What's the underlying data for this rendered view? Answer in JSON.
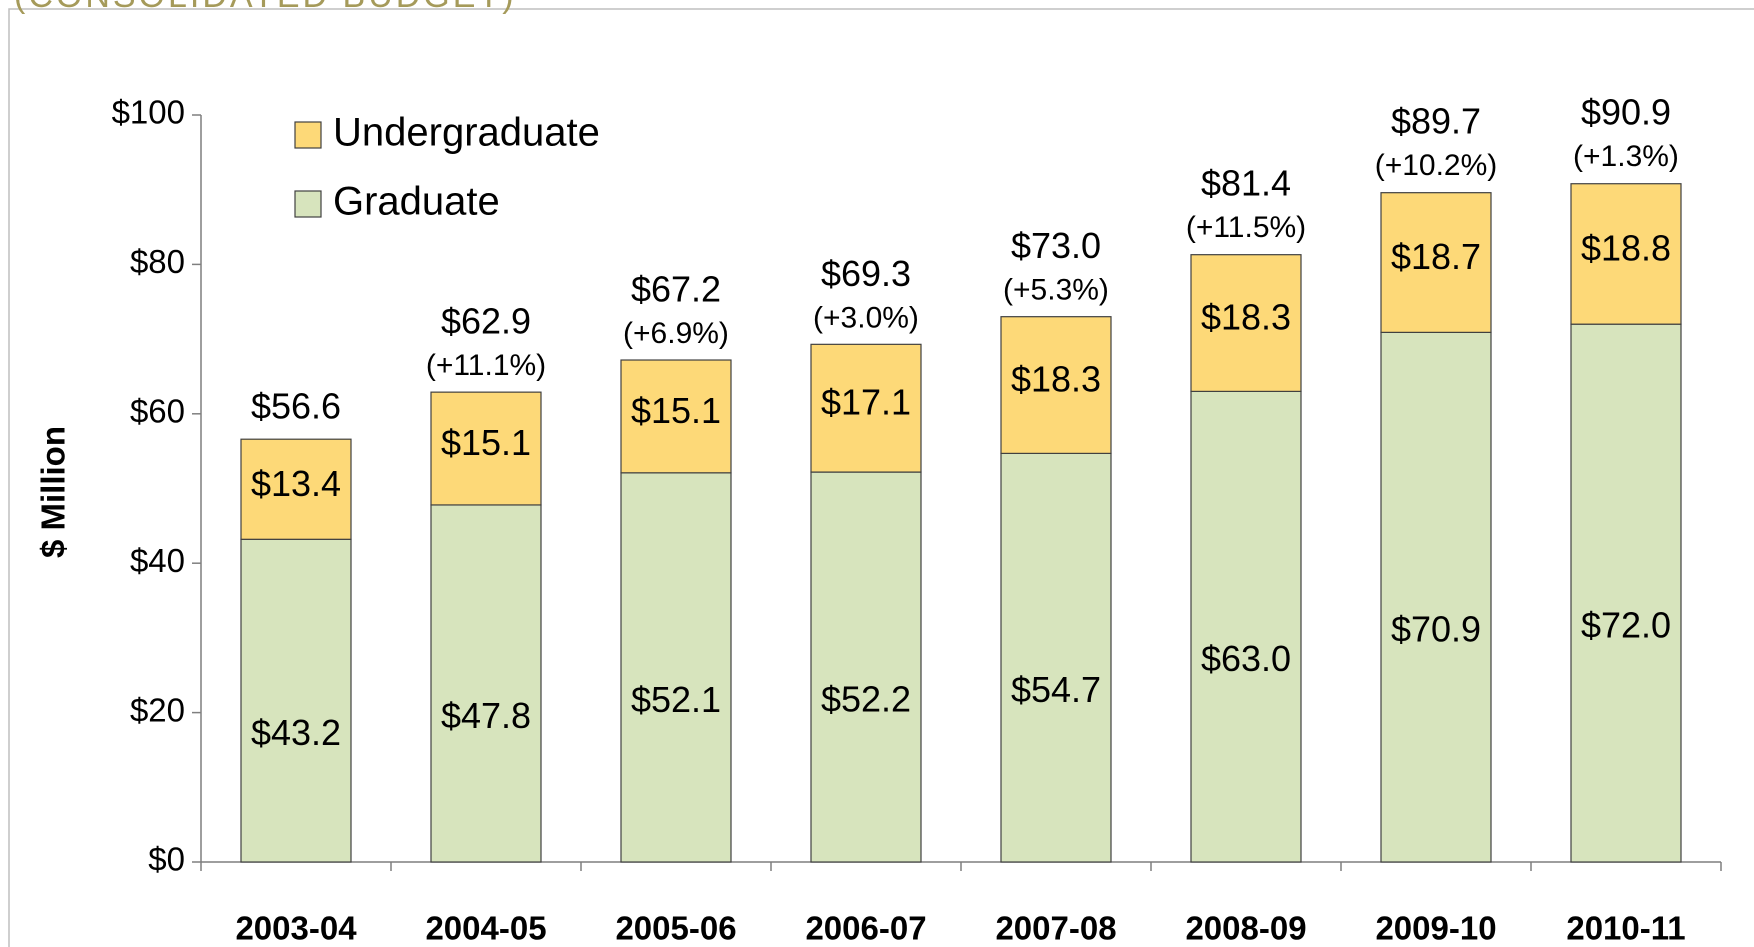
{
  "chart_data": {
    "type": "bar",
    "stacked": true,
    "title": "(CONSOLIDATED BUDGET)",
    "y_label": "$ Million",
    "categories": [
      "2003-04",
      "2004-05",
      "2005-06",
      "2006-07",
      "2007-08",
      "2008-09",
      "2009-10",
      "2010-11"
    ],
    "series": [
      {
        "name": "Graduate",
        "color": "#d7e4bd",
        "values": [
          43.2,
          47.8,
          52.1,
          52.2,
          54.7,
          63.0,
          70.9,
          72.0
        ],
        "value_labels": [
          "$43.2",
          "$47.8",
          "$52.1",
          "$52.2",
          "$54.7",
          "$63.0",
          "$70.9",
          "$72.0"
        ]
      },
      {
        "name": "Undergraduate",
        "color": "#fdd978",
        "values": [
          13.4,
          15.1,
          15.1,
          17.1,
          18.3,
          18.3,
          18.7,
          18.8
        ],
        "value_labels": [
          "$13.4",
          "$15.1",
          "$15.1",
          "$17.1",
          "$18.3",
          "$18.3",
          "$18.7",
          "$18.8"
        ]
      }
    ],
    "totals": {
      "values": [
        56.6,
        62.9,
        67.2,
        69.3,
        73.0,
        81.4,
        89.7,
        90.9
      ],
      "value_labels": [
        "$56.6",
        "$62.9",
        "$67.2",
        "$69.3",
        "$73.0",
        "$81.4",
        "$89.7",
        "$90.9"
      ],
      "growth_labels": [
        null,
        "(+11.1%)",
        "(+6.9%)",
        "(+3.0%)",
        "(+5.3%)",
        "(+11.5%)",
        "(+10.2%)",
        "(+1.3%)"
      ]
    },
    "ylim": [
      0,
      100
    ],
    "yticks": [
      {
        "value": 0,
        "label": "$0"
      },
      {
        "value": 20,
        "label": "$20"
      },
      {
        "value": 40,
        "label": "$40"
      },
      {
        "value": 60,
        "label": "$60"
      },
      {
        "value": 80,
        "label": "$80"
      },
      {
        "value": 100,
        "label": "$100"
      }
    ],
    "grid": false,
    "legend": "upper left"
  }
}
